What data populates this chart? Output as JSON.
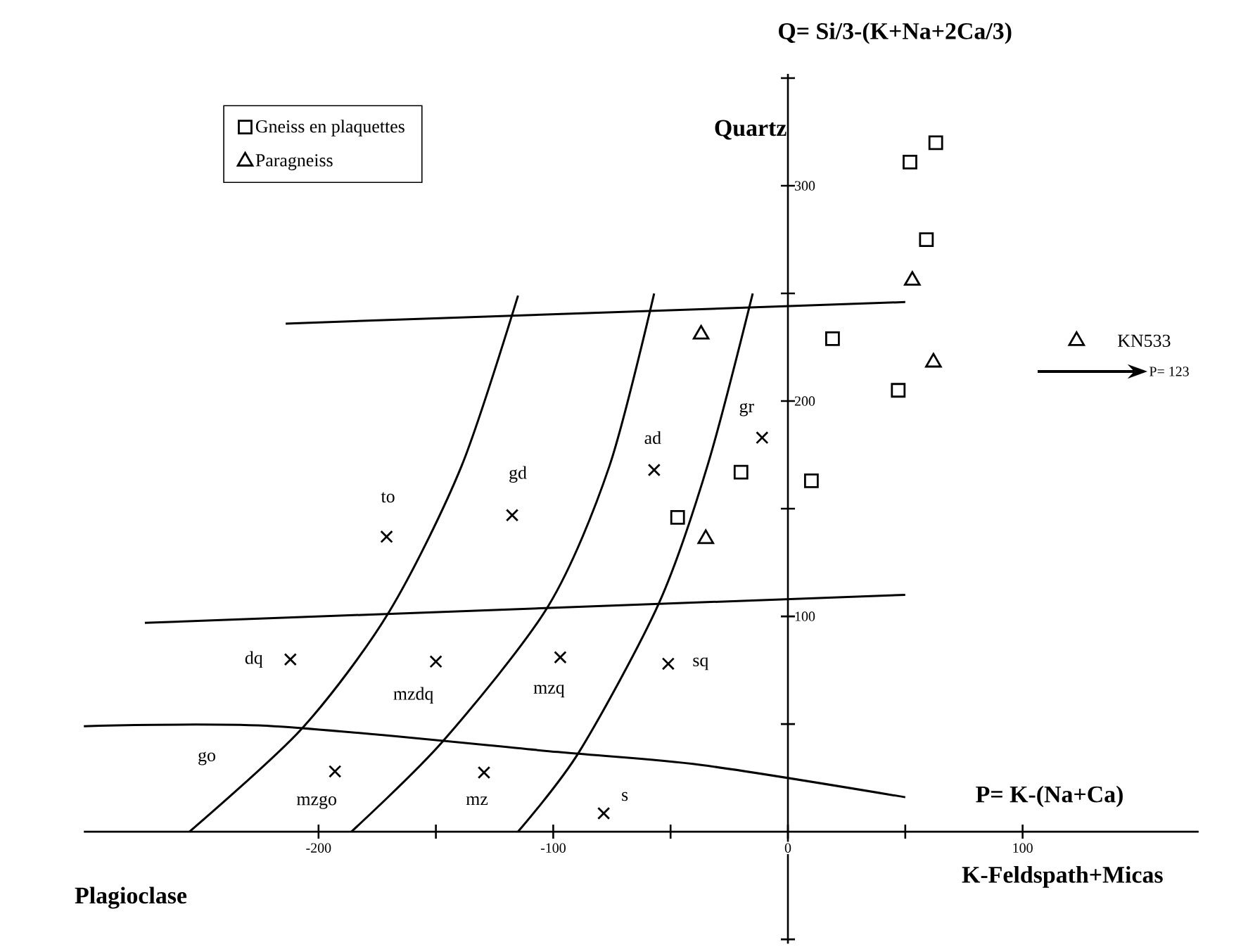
{
  "chart_data": {
    "type": "scatter",
    "title": "Q= Si/3-(K+Na+2Ca/3)",
    "xlabel": "K-Feldspath+Micas",
    "ylabel": "Quartz",
    "xlim": [
      -300,
      175
    ],
    "ylim": [
      -52,
      352
    ],
    "xticks": [
      -200,
      {
        "value": -150,
        "label": null
      },
      -100,
      {
        "value": -50,
        "label": null
      },
      0,
      {
        "value": 50,
        "label": null
      },
      100
    ],
    "yticks": [
      {
        "value": -50,
        "label": null
      },
      {
        "value": 50,
        "label": null
      },
      100,
      {
        "value": 150,
        "label": null
      },
      200,
      {
        "value": 250,
        "label": null
      },
      300,
      {
        "value": 350,
        "label": null
      }
    ],
    "legend": "top left",
    "series": [
      {
        "name": "Gneiss en plaquettes",
        "marker": "square",
        "color": "#000000",
        "x": [
          52,
          63,
          59,
          19,
          47,
          -20,
          10,
          -47
        ],
        "values": [
          311,
          320,
          275,
          229,
          205,
          167,
          163,
          146
        ]
      },
      {
        "name": "Paragneiss",
        "marker": "triangle",
        "color": "#000000",
        "x": [
          53,
          62,
          -37,
          -35,
          123
        ],
        "values": [
          256,
          218,
          231,
          136,
          228
        ]
      },
      {
        "marker": "cross",
        "color": "#000000",
        "x": [
          -171,
          -117.5,
          -57,
          -11,
          -212,
          -150,
          -97,
          -51,
          -193,
          -129.5,
          -78.5
        ],
        "values": [
          137,
          147,
          168,
          183,
          80,
          79,
          81,
          78,
          28,
          27.5,
          8.5
        ]
      },
      {
        "type": "line",
        "color": "#000000",
        "x": [
          -214,
          50
        ],
        "values": [
          236,
          246
        ]
      },
      {
        "type": "line",
        "color": "#000000",
        "x": [
          -274,
          50
        ],
        "values": [
          97,
          110
        ]
      },
      {
        "type": "line",
        "color": "#000000",
        "x": [
          -300,
          -219,
          -98,
          -37,
          50
        ],
        "values": [
          49,
          49,
          37,
          31,
          16
        ]
      },
      {
        "type": "line",
        "color": "#000000",
        "x": [
          -255,
          -207,
          -170,
          -139,
          -115
        ],
        "values": [
          0,
          48,
          102,
          170,
          249
        ]
      },
      {
        "type": "line",
        "color": "#000000",
        "x": [
          -186,
          -147,
          -102,
          -76,
          -57
        ],
        "values": [
          0,
          42,
          105,
          170,
          250
        ]
      },
      {
        "type": "line",
        "color": "#000000",
        "x": [
          -115,
          -89,
          -55,
          -34,
          -15
        ],
        "values": [
          0,
          37,
          106,
          171,
          250
        ]
      }
    ],
    "annotations": [
      {
        "text": "to",
        "x": -171,
        "y": 137
      },
      {
        "text": "gd",
        "x": -117.5,
        "y": 147
      },
      {
        "text": "ad",
        "x": -57,
        "y": 168
      },
      {
        "text": "gr",
        "x": -11,
        "y": 183
      },
      {
        "text": "dq",
        "x": -212,
        "y": 80
      },
      {
        "text": "mzdq",
        "x": -150,
        "y": 79
      },
      {
        "text": "mzq",
        "x": -97,
        "y": 81
      },
      {
        "text": "sq",
        "x": -51,
        "y": 78
      },
      {
        "text": "mzgo",
        "x": -193,
        "y": 28
      },
      {
        "text": "mz",
        "x": -129.5,
        "y": 27.5
      },
      {
        "text": "s",
        "x": -78.5,
        "y": 8.5
      },
      {
        "text": "KN533",
        "x": 123,
        "y": 228
      },
      "P= 123",
      "go",
      "P= K-(Na+Ca)",
      "Plagioclase"
    ]
  }
}
